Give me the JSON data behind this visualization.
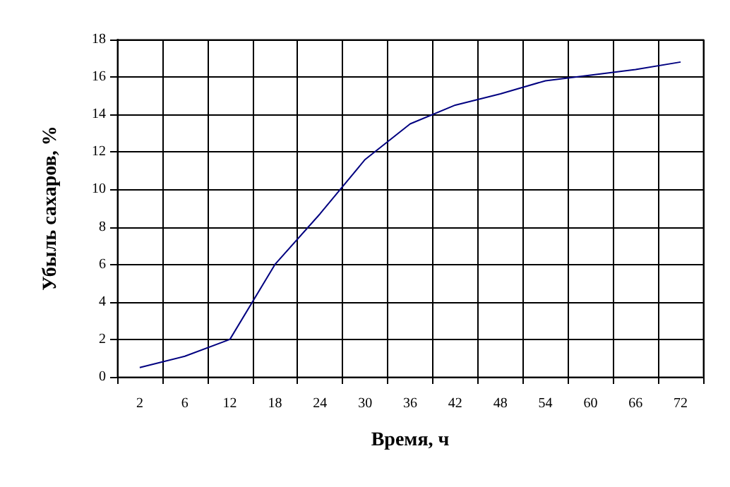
{
  "chart_data": {
    "type": "line",
    "xlabel": "Время, ч",
    "ylabel": "Убыль сахаров, %",
    "categories": [
      "2",
      "6",
      "12",
      "18",
      "24",
      "30",
      "36",
      "42",
      "48",
      "54",
      "60",
      "66",
      "72"
    ],
    "series": [
      {
        "color": "#000080",
        "values": [
          0.5,
          1.1,
          2.0,
          6.0,
          8.7,
          11.6,
          13.5,
          14.5,
          15.1,
          15.8,
          16.1,
          16.4,
          16.8
        ]
      }
    ],
    "ylim": [
      0,
      18
    ],
    "yticks": [
      0,
      2,
      4,
      6,
      8,
      10,
      12,
      14,
      16,
      18
    ],
    "grid": true,
    "marker": "none",
    "line_style": "solid"
  }
}
